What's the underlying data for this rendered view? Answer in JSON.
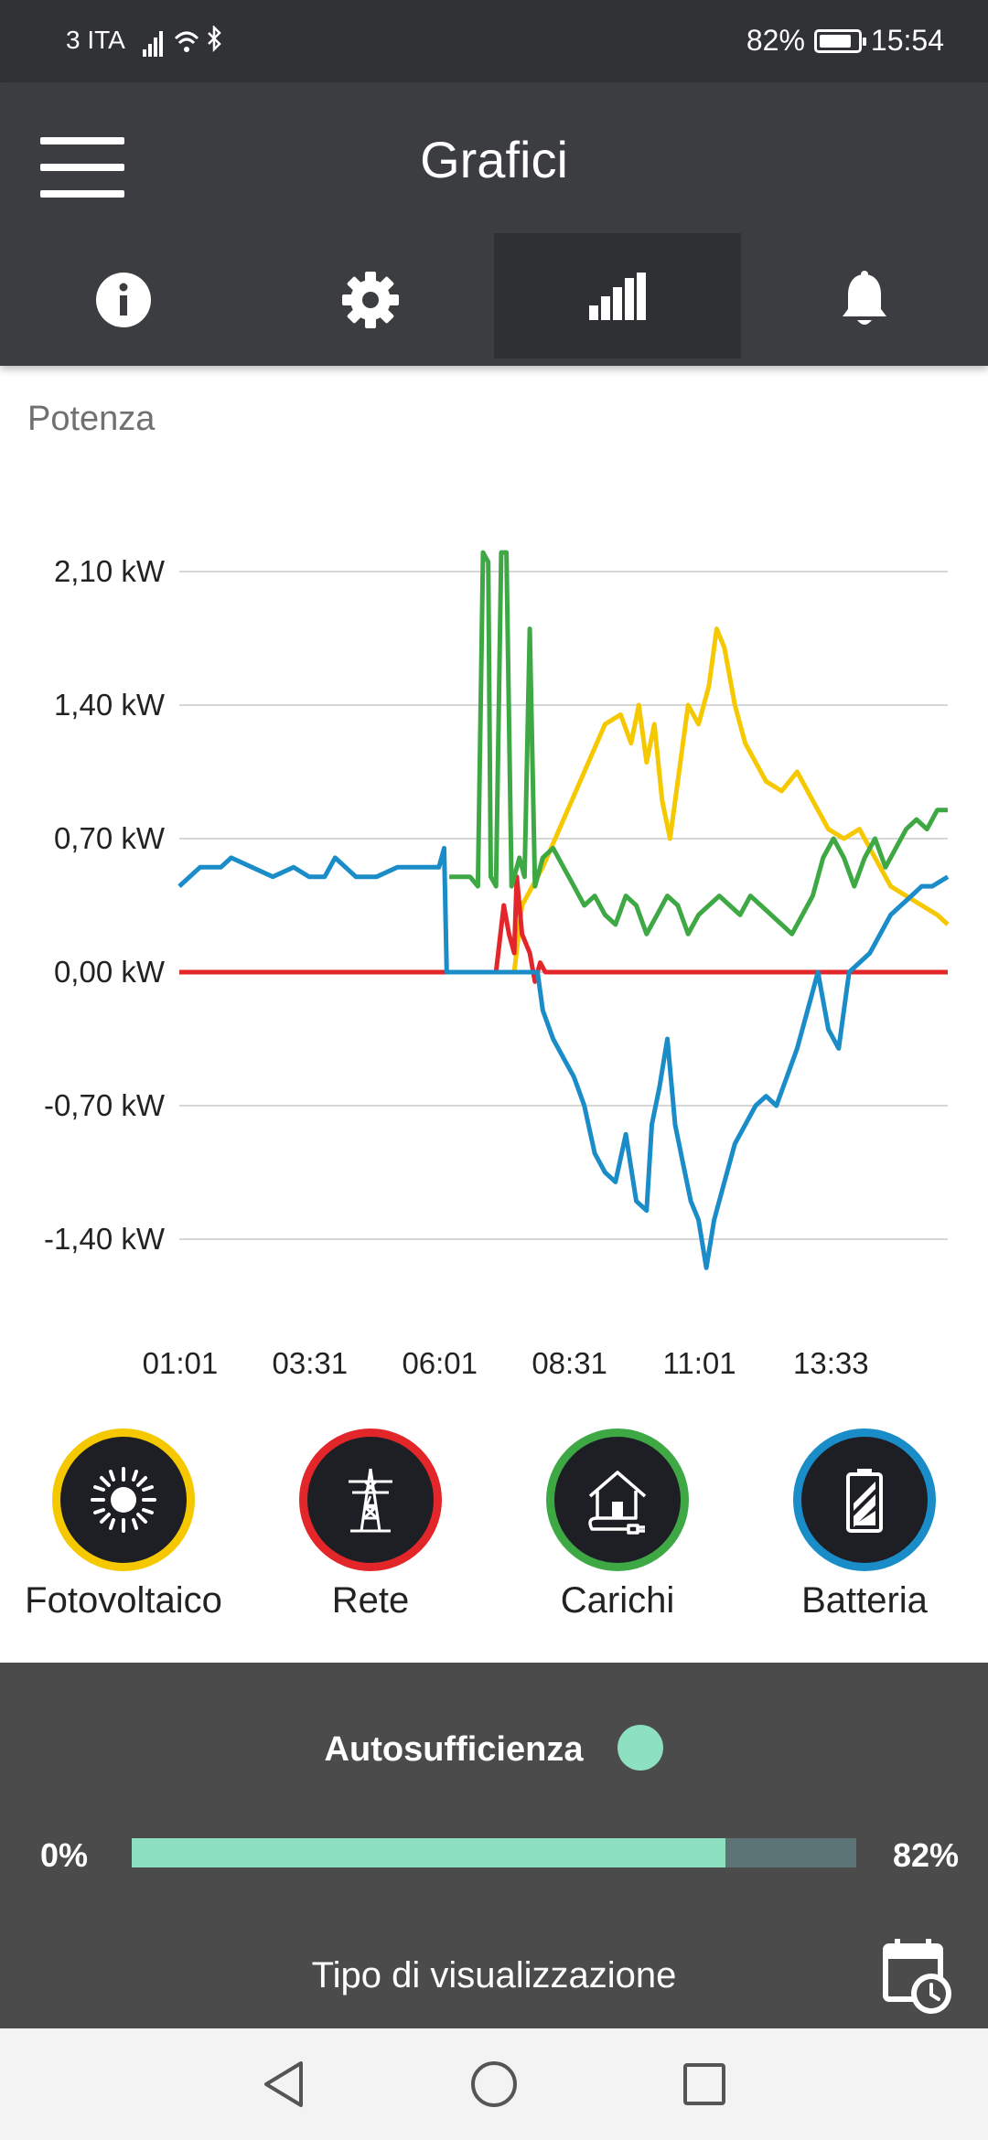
{
  "status_bar": {
    "carrier": "3 ITA",
    "battery": "82%",
    "time": "15:54"
  },
  "app_bar": {
    "title": "Grafici",
    "tabs": [
      {
        "name": "info",
        "icon": "info-icon"
      },
      {
        "name": "settings",
        "icon": "gear-icon"
      },
      {
        "name": "charts",
        "icon": "bar-chart-icon",
        "active": true
      },
      {
        "name": "notifications",
        "icon": "bell-icon"
      }
    ]
  },
  "section_label": "Potenza",
  "chart_data": {
    "type": "line",
    "title": "Potenza",
    "y_tick_labels": [
      "2,10 kW",
      "1,40 kW",
      "0,70 kW",
      "0,00 kW",
      "-0,70 kW",
      "-1,40 kW"
    ],
    "y_ticks": [
      2.1,
      1.4,
      0.7,
      0.0,
      -0.7,
      -1.4
    ],
    "x_tick_labels": [
      "01:01",
      "03:31",
      "06:01",
      "08:31",
      "11:01",
      "13:33"
    ],
    "x_ticks": [
      1.017,
      3.517,
      6.017,
      8.517,
      11.017,
      13.55
    ],
    "xlim": [
      1.0,
      15.8
    ],
    "ylim": [
      -1.6,
      2.25
    ],
    "grid": true,
    "series": [
      {
        "name": "Fotovoltaico",
        "color": "#f5c800",
        "points": [
          [
            1.0,
            0
          ],
          [
            6.3,
            0
          ],
          [
            7.45,
            0
          ],
          [
            7.6,
            0.35
          ],
          [
            8.0,
            0.55
          ],
          [
            8.4,
            0.8
          ],
          [
            8.8,
            1.05
          ],
          [
            9.2,
            1.3
          ],
          [
            9.5,
            1.35
          ],
          [
            9.7,
            1.2
          ],
          [
            9.85,
            1.4
          ],
          [
            10.0,
            1.1
          ],
          [
            10.15,
            1.3
          ],
          [
            10.3,
            0.9
          ],
          [
            10.45,
            0.7
          ],
          [
            10.6,
            1.0
          ],
          [
            10.8,
            1.4
          ],
          [
            11.0,
            1.3
          ],
          [
            11.2,
            1.5
          ],
          [
            11.35,
            1.8
          ],
          [
            11.5,
            1.7
          ],
          [
            11.7,
            1.4
          ],
          [
            11.9,
            1.2
          ],
          [
            12.1,
            1.1
          ],
          [
            12.3,
            1.0
          ],
          [
            12.6,
            0.95
          ],
          [
            12.9,
            1.05
          ],
          [
            13.2,
            0.9
          ],
          [
            13.5,
            0.75
          ],
          [
            13.8,
            0.7
          ],
          [
            14.1,
            0.75
          ],
          [
            14.4,
            0.6
          ],
          [
            14.7,
            0.45
          ],
          [
            15.0,
            0.4
          ],
          [
            15.3,
            0.35
          ],
          [
            15.6,
            0.3
          ],
          [
            15.8,
            0.25
          ]
        ]
      },
      {
        "name": "Rete",
        "color": "#e3262a",
        "points": [
          [
            1.0,
            0
          ],
          [
            7.1,
            0
          ],
          [
            7.25,
            0.35
          ],
          [
            7.35,
            0.2
          ],
          [
            7.45,
            0.1
          ],
          [
            7.5,
            0.5
          ],
          [
            7.6,
            0.2
          ],
          [
            7.75,
            0.1
          ],
          [
            7.85,
            -0.05
          ],
          [
            7.95,
            0.05
          ],
          [
            8.05,
            0
          ],
          [
            15.8,
            0
          ]
        ]
      },
      {
        "name": "Carichi",
        "color": "#3ea845",
        "points": [
          [
            6.2,
            0.5
          ],
          [
            6.6,
            0.5
          ],
          [
            6.75,
            0.45
          ],
          [
            6.85,
            2.2
          ],
          [
            6.95,
            2.15
          ],
          [
            7.0,
            0.5
          ],
          [
            7.1,
            0.45
          ],
          [
            7.2,
            2.2
          ],
          [
            7.3,
            2.2
          ],
          [
            7.4,
            0.45
          ],
          [
            7.55,
            0.6
          ],
          [
            7.65,
            0.5
          ],
          [
            7.75,
            1.8
          ],
          [
            7.85,
            0.45
          ],
          [
            8.0,
            0.6
          ],
          [
            8.2,
            0.65
          ],
          [
            8.4,
            0.55
          ],
          [
            8.6,
            0.45
          ],
          [
            8.8,
            0.35
          ],
          [
            9.0,
            0.4
          ],
          [
            9.2,
            0.3
          ],
          [
            9.4,
            0.25
          ],
          [
            9.6,
            0.4
          ],
          [
            9.8,
            0.35
          ],
          [
            10.0,
            0.2
          ],
          [
            10.2,
            0.3
          ],
          [
            10.4,
            0.4
          ],
          [
            10.6,
            0.35
          ],
          [
            10.8,
            0.2
          ],
          [
            11.0,
            0.3
          ],
          [
            11.2,
            0.35
          ],
          [
            11.4,
            0.4
          ],
          [
            11.6,
            0.35
          ],
          [
            11.8,
            0.3
          ],
          [
            12.0,
            0.4
          ],
          [
            12.2,
            0.35
          ],
          [
            12.4,
            0.3
          ],
          [
            12.6,
            0.25
          ],
          [
            12.8,
            0.2
          ],
          [
            13.0,
            0.3
          ],
          [
            13.2,
            0.4
          ],
          [
            13.4,
            0.6
          ],
          [
            13.6,
            0.7
          ],
          [
            13.8,
            0.6
          ],
          [
            14.0,
            0.45
          ],
          [
            14.2,
            0.6
          ],
          [
            14.4,
            0.7
          ],
          [
            14.6,
            0.55
          ],
          [
            14.8,
            0.65
          ],
          [
            15.0,
            0.75
          ],
          [
            15.2,
            0.8
          ],
          [
            15.4,
            0.75
          ],
          [
            15.6,
            0.85
          ],
          [
            15.8,
            0.85
          ]
        ]
      },
      {
        "name": "Batteria",
        "color": "#1a8cc8",
        "points": [
          [
            1.0,
            0.45
          ],
          [
            1.4,
            0.55
          ],
          [
            1.8,
            0.55
          ],
          [
            2.0,
            0.6
          ],
          [
            2.4,
            0.55
          ],
          [
            2.8,
            0.5
          ],
          [
            3.2,
            0.55
          ],
          [
            3.5,
            0.5
          ],
          [
            3.8,
            0.5
          ],
          [
            4.0,
            0.6
          ],
          [
            4.4,
            0.5
          ],
          [
            4.8,
            0.5
          ],
          [
            5.2,
            0.55
          ],
          [
            5.6,
            0.55
          ],
          [
            6.0,
            0.55
          ],
          [
            6.1,
            0.65
          ],
          [
            6.15,
            0
          ],
          [
            7.9,
            0
          ],
          [
            8.0,
            -0.2
          ],
          [
            8.2,
            -0.35
          ],
          [
            8.4,
            -0.45
          ],
          [
            8.6,
            -0.55
          ],
          [
            8.8,
            -0.7
          ],
          [
            9.0,
            -0.95
          ],
          [
            9.2,
            -1.05
          ],
          [
            9.4,
            -1.1
          ],
          [
            9.6,
            -0.85
          ],
          [
            9.8,
            -1.2
          ],
          [
            10.0,
            -1.25
          ],
          [
            10.1,
            -0.8
          ],
          [
            10.25,
            -0.6
          ],
          [
            10.4,
            -0.35
          ],
          [
            10.55,
            -0.8
          ],
          [
            10.7,
            -1.0
          ],
          [
            10.85,
            -1.2
          ],
          [
            11.0,
            -1.3
          ],
          [
            11.15,
            -1.55
          ],
          [
            11.3,
            -1.3
          ],
          [
            11.5,
            -1.1
          ],
          [
            11.7,
            -0.9
          ],
          [
            11.9,
            -0.8
          ],
          [
            12.1,
            -0.7
          ],
          [
            12.3,
            -0.65
          ],
          [
            12.5,
            -0.7
          ],
          [
            12.7,
            -0.55
          ],
          [
            12.9,
            -0.4
          ],
          [
            13.1,
            -0.2
          ],
          [
            13.3,
            0.0
          ],
          [
            13.5,
            -0.3
          ],
          [
            13.7,
            -0.4
          ],
          [
            13.9,
            0.0
          ],
          [
            14.1,
            0.05
          ],
          [
            14.3,
            0.1
          ],
          [
            14.5,
            0.2
          ],
          [
            14.7,
            0.3
          ],
          [
            14.9,
            0.35
          ],
          [
            15.1,
            0.4
          ],
          [
            15.3,
            0.45
          ],
          [
            15.5,
            0.45
          ],
          [
            15.8,
            0.5
          ]
        ]
      }
    ]
  },
  "legend": [
    {
      "label": "Fotovoltaico",
      "color": "#f5c800",
      "icon": "sun-icon"
    },
    {
      "label": "Rete",
      "color": "#e3262a",
      "icon": "power-pylon-icon"
    },
    {
      "label": "Carichi",
      "color": "#3ea845",
      "icon": "house-plug-icon"
    },
    {
      "label": "Batteria",
      "color": "#1a8cc8",
      "icon": "battery-icon"
    }
  ],
  "autosufficiency": {
    "title": "Autosufficienza",
    "min_label": "0%",
    "value_label": "82%",
    "value": 0.82,
    "color": "#8de0c0"
  },
  "view_type_label": "Tipo di visualizzazione"
}
